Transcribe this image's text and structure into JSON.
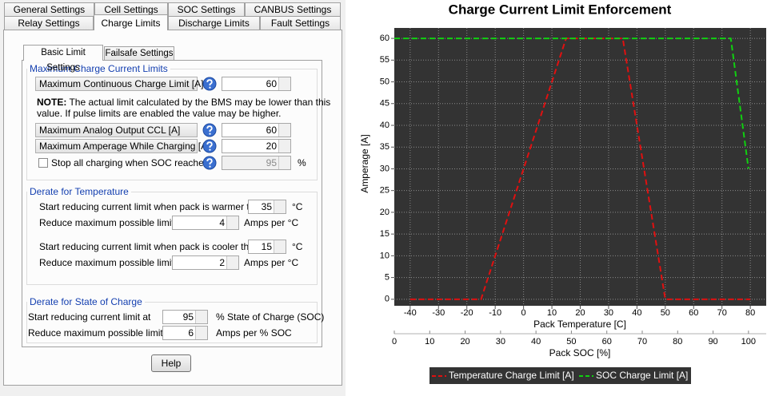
{
  "tabs": {
    "row1": [
      "General Settings",
      "Cell Settings",
      "SOC Settings",
      "CANBUS Settings"
    ],
    "row2": [
      "Relay Settings",
      "Charge Limits",
      "Discharge Limits",
      "Fault Settings"
    ]
  },
  "subtabs": [
    "Basic Limit Settings",
    "Failsafe Settings"
  ],
  "max_limits": {
    "title": "Maximum Charge Current Limits",
    "continuous": {
      "label": "Maximum Continuous Charge Limit [A]",
      "value": 60
    },
    "note_label": "NOTE:",
    "note": [
      "The actual limit calculated by the BMS may be lower than this",
      "value. If pulse limits are enabled the value may be higher."
    ],
    "analog": {
      "label": "Maximum Analog Output CCL [A]",
      "value": 60
    },
    "while_charging": {
      "label": "Maximum Amperage While Charging [A]",
      "value": 20
    },
    "stop_soc": {
      "label": "Stop all charging when SOC reaches",
      "value": 95,
      "unit": "%"
    }
  },
  "derate_temp": {
    "title": "Derate for Temperature",
    "warm": {
      "label": "Start reducing current limit when pack is warmer than",
      "value": 35,
      "unit": "°C"
    },
    "warm_rate": {
      "label": "Reduce maximum possible limit by",
      "value": 4,
      "unit": "Amps per °C"
    },
    "cool": {
      "label": "Start reducing current limit when pack is cooler than",
      "value": 15,
      "unit": "°C"
    },
    "cool_rate": {
      "label": "Reduce maximum possible limit by",
      "value": 2,
      "unit": "Amps per °C"
    }
  },
  "derate_soc": {
    "title": "Derate for State of Charge",
    "start": {
      "label": "Start reducing current limit at",
      "value": 95,
      "unit": "% State of Charge (SOC)"
    },
    "rate": {
      "label": "Reduce maximum possible limit by",
      "value": 6,
      "unit": "Amps per % SOC"
    }
  },
  "help_button": "Help",
  "chart_data": {
    "type": "line",
    "title": "Charge Current Limit Enforcement",
    "ylabel": "Amperage [A]",
    "xlabel": "Pack Temperature [C]",
    "x2label": "Pack SOC [%]",
    "xlim": [
      -45.6,
      85.6
    ],
    "xticks": [
      -40,
      -30,
      -20,
      -10,
      0,
      10,
      20,
      30,
      40,
      50,
      60,
      70,
      80
    ],
    "x2lim": [
      0,
      105
    ],
    "x2ticks": [
      0,
      10,
      20,
      30,
      40,
      50,
      60,
      70,
      80,
      90,
      100
    ],
    "ylim": [
      -1.5,
      62.4
    ],
    "yticks": [
      0,
      5,
      10,
      15,
      20,
      25,
      30,
      35,
      40,
      45,
      50,
      55,
      60
    ],
    "grid": true,
    "series": [
      {
        "name": "Temperature Charge Limit [A]",
        "color": "#e01010",
        "x": [
          -40,
          -15,
          15,
          35,
          50,
          80
        ],
        "values": [
          0,
          0,
          60,
          60,
          0,
          0
        ]
      },
      {
        "name": "SOC Charge Limit [A]",
        "color": "#10d010",
        "axis": "x2",
        "x": [
          0,
          95,
          100
        ],
        "values": [
          60,
          60,
          30
        ]
      }
    ]
  }
}
